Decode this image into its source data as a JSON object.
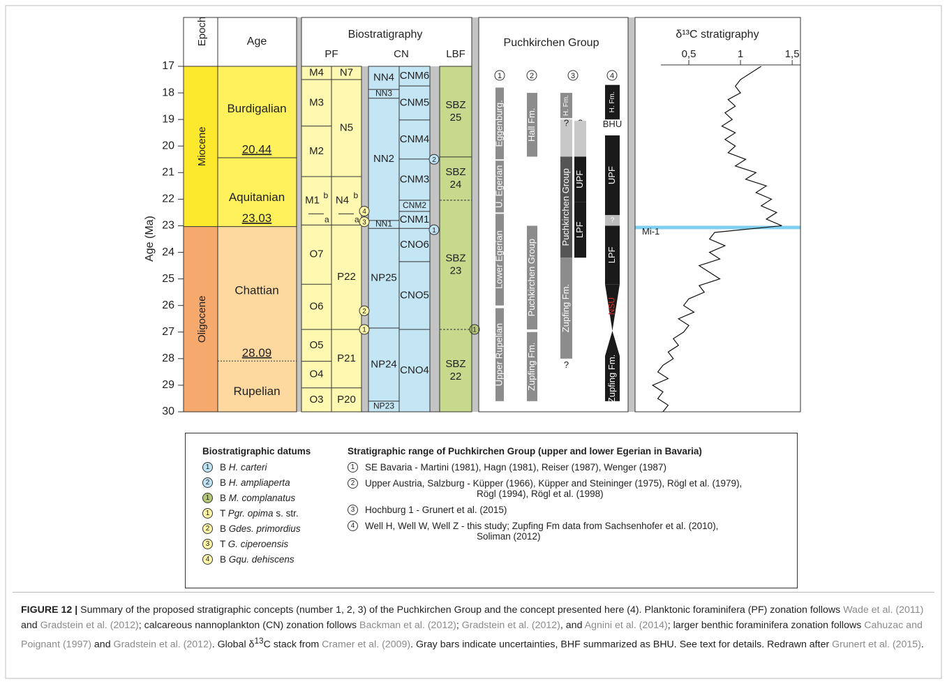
{
  "figure": {
    "epoch_header": "Epoch",
    "age_header": "Age",
    "epochs": [
      {
        "label": "Miocene",
        "from": 17,
        "to": 23.03,
        "color": "#fce92d"
      },
      {
        "label": "Oligocene",
        "from": 23.03,
        "to": 30,
        "color": "#f6a96d"
      }
    ],
    "stages": [
      {
        "label": "Burdigalian",
        "from": 17,
        "to": 20.44,
        "color": "#fef15c"
      },
      {
        "label": "Aquitanian",
        "from": 20.44,
        "to": 23.03,
        "color": "#fef15c"
      },
      {
        "label": "Chattian",
        "from": 23.03,
        "to": 28.09,
        "color": "#fdd9a0"
      },
      {
        "label": "Rupelian",
        "from": 28.09,
        "to": 30,
        "color": "#fdd9a0"
      }
    ],
    "boundaries": [
      {
        "age": 20.44,
        "style": "solid"
      },
      {
        "age": 23.03,
        "style": "solid"
      },
      {
        "age": 28.09,
        "style": "dotted"
      }
    ],
    "biostratigraphy": {
      "title": "Biostratigraphy",
      "columns": [
        {
          "name": "PF",
          "color": "#fff8b0",
          "lanes": [
            [
              {
                "label": "M4",
                "from": 17,
                "to": 17.5
              },
              {
                "label": "M3",
                "from": 17.5,
                "to": 19.25
              },
              {
                "label": "M2",
                "from": 19.25,
                "to": 21.15
              },
              {
                "label": "M1",
                "sup": "b",
                "sub": "a",
                "split": 22.55,
                "from": 21.15,
                "to": 22.97
              },
              {
                "label": "O7",
                "from": 22.97,
                "to": 25.2
              },
              {
                "label": "O6",
                "from": 25.2,
                "to": 26.9
              },
              {
                "label": "O5",
                "from": 26.9,
                "to": 28.1
              },
              {
                "label": "O4",
                "from": 28.1,
                "to": 29.1
              },
              {
                "label": "O3",
                "from": 29.1,
                "to": 30
              }
            ],
            [
              {
                "label": "N7",
                "from": 17,
                "to": 17.5
              },
              {
                "label": "N5",
                "from": 17.5,
                "to": 21.15
              },
              {
                "label": "N4",
                "sup": "b",
                "sub": "a",
                "split": 22.55,
                "from": 21.15,
                "to": 22.97
              },
              {
                "label": "P22",
                "from": 22.97,
                "to": 26.9
              },
              {
                "label": "P21",
                "from": 26.9,
                "to": 29.1
              },
              {
                "label": "P20",
                "from": 29.1,
                "to": 30
              }
            ]
          ]
        },
        {
          "name": "CN",
          "color": "#c4e5f4",
          "lanes": [
            [
              {
                "label": "NN4",
                "from": 17,
                "to": 17.87
              },
              {
                "label": "NN3",
                "from": 17.87,
                "to": 18.2
              },
              {
                "label": "NN2",
                "from": 18.2,
                "to": 22.8
              },
              {
                "label": "NN1",
                "from": 22.8,
                "to": 23.1
              },
              {
                "label": "NP25",
                "from": 23.1,
                "to": 26.85
              },
              {
                "label": "NP24",
                "from": 26.85,
                "to": 29.6
              },
              {
                "label": "NP23",
                "from": 29.6,
                "to": 30
              }
            ],
            [
              {
                "label": "CNM6",
                "from": 17,
                "to": 17.74
              },
              {
                "label": "CNM5",
                "from": 17.74,
                "to": 19.02
              },
              {
                "label": "CNM4",
                "from": 19.02,
                "to": 20.49
              },
              {
                "label": "CNM3",
                "from": 20.49,
                "to": 22.04
              },
              {
                "label": "CNM2",
                "from": 22.04,
                "to": 22.46
              },
              {
                "label": "CNM1",
                "from": 22.46,
                "to": 23.1
              },
              {
                "label": "CNO6",
                "from": 23.1,
                "to": 24.35
              },
              {
                "label": "CNO5",
                "from": 24.35,
                "to": 26.9
              },
              {
                "label": "CNO4",
                "from": 26.9,
                "to": 30
              }
            ]
          ]
        },
        {
          "name": "LBF",
          "color": "#c6d98c",
          "lanes": [
            [
              {
                "label": [
                  "SBZ",
                  "25"
                ],
                "from": 17,
                "to": 20.41,
                "top": "solid"
              },
              {
                "label": [
                  "SBZ",
                  "24"
                ],
                "from": 20.41,
                "to": 22.04,
                "top": "solid"
              },
              {
                "label": [
                  "SBZ",
                  "23"
                ],
                "from": 22.04,
                "to": 26.9,
                "top": "dashed"
              },
              {
                "label": [
                  "SBZ",
                  "22"
                ],
                "from": 26.9,
                "to": 30,
                "top": "dashed"
              }
            ]
          ]
        }
      ]
    },
    "datum_markers": [
      {
        "datum": 6,
        "age": 22.45,
        "column": 0
      },
      {
        "datum": 5,
        "age": 22.85,
        "column": 0
      },
      {
        "datum": 4,
        "age": 26.2,
        "column": 0
      },
      {
        "datum": 3,
        "age": 26.9,
        "column": 0
      },
      {
        "datum": 0,
        "age": 23.15,
        "column": 1
      },
      {
        "datum": 1,
        "age": 20.5,
        "column": 1
      },
      {
        "datum": 2,
        "age": 26.9,
        "column": 2
      }
    ],
    "puchkirchen": {
      "title": "Puchkirchen Group",
      "columns": [
        {
          "n": "1",
          "items": [
            {
              "label": "Eggenburg.",
              "from": 17.8,
              "to": 20.5,
              "color": "#8c8c8c",
              "lane": 0
            },
            {
              "label": "U. Egerian",
              "from": 20.55,
              "to": 22.5,
              "color": "#8c8c8c",
              "lane": 0
            },
            {
              "label": "Lower Egerian",
              "from": 22.55,
              "to": 26.0,
              "color": "#8c8c8c",
              "lane": 0
            },
            {
              "label": "Upper Rupelian",
              "from": 26.1,
              "to": 29.6,
              "color": "#8c8c8c",
              "lane": 0
            }
          ]
        },
        {
          "n": "2",
          "items": [
            {
              "label": "Hall Fm.",
              "from": 18.0,
              "to": 20.4,
              "color": "#8c8c8c",
              "lane": 0
            },
            {
              "label": "Puchkirchen Group",
              "from": 23.0,
              "to": 26.9,
              "color": "#8c8c8c",
              "lane": 0
            },
            {
              "label": "Zupfing Fm.",
              "from": 27.0,
              "to": 29.6,
              "color": "#8c8c8c",
              "lane": 0
            }
          ]
        },
        {
          "n": "3",
          "items": [
            {
              "label": "H. Fm.",
              "from": 18.0,
              "to": 18.95,
              "color": "#8c8c8c",
              "lane": 0
            },
            {
              "label": "",
              "from": 19.0,
              "to": 20.4,
              "color": "#c8c8c8",
              "lane": 0
            },
            {
              "label": "Puchkirchen Group",
              "from": 20.4,
              "to": 24.2,
              "color": "#555555",
              "lane": 0
            },
            {
              "label": "Zupfing Fm.",
              "from": 24.2,
              "to": 28.0,
              "color": "#8c8c8c",
              "lane": 0
            },
            {
              "label": "?",
              "at": 28.25,
              "lane": 0
            },
            {
              "label": "?",
              "at": 19.15,
              "lane": 0
            },
            {
              "label": "?",
              "at": 19.15,
              "lane": 1
            },
            {
              "label": "",
              "from": 19.05,
              "to": 20.4,
              "color": "#c8c8c8",
              "lane": 1
            },
            {
              "label": "UPF",
              "from": 20.4,
              "to": 22.1,
              "color": "#1a1a1a",
              "lane": 1
            },
            {
              "label": "LPF",
              "from": 22.1,
              "to": 24.2,
              "color": "#1a1a1a",
              "lane": 1
            }
          ]
        },
        {
          "n": "4",
          "items": [
            {
              "label": "H. Fm.",
              "from": 17.7,
              "to": 19.0,
              "color": "#1a1a1a",
              "lane": 0
            },
            {
              "label": "BHU",
              "at": 19.2,
              "lane": 0
            },
            {
              "label": "UPF",
              "from": 19.6,
              "to": 22.6,
              "color": "#1a1a1a",
              "lane": 0
            },
            {
              "label": "?",
              "from": 22.6,
              "to": 23.0,
              "color": "#bdbdbd",
              "lane": 0
            },
            {
              "label": "LPF",
              "from": 23.0,
              "to": 25.2,
              "color": "#1a1a1a",
              "lane": 0
            },
            {
              "label": "NSU",
              "from": 25.2,
              "to": 27.9,
              "color": "#1a1a1a",
              "text_color": "#e03030",
              "shape": "wedge",
              "lane": 0
            },
            {
              "label": "Zupfing Fm.",
              "from": 27.9,
              "to": 29.6,
              "color": "#1a1a1a",
              "lane": 0
            }
          ]
        }
      ]
    }
  },
  "chart_data": {
    "type": "line",
    "title": "δ¹³C stratigraphy",
    "ylabel": "Age (Ma)",
    "ylim": [
      17,
      30
    ],
    "yticks": [
      17,
      18,
      19,
      20,
      21,
      22,
      23,
      24,
      25,
      26,
      27,
      28,
      29,
      30
    ],
    "xlim": [
      -0.02,
      1.58
    ],
    "xticks": [
      {
        "value": 0.5,
        "label": "0,5"
      },
      1,
      {
        "value": 1.5,
        "label": "1,5"
      }
    ],
    "color": "#111111",
    "ages": [
      17,
      17.25,
      17.5,
      17.75,
      18,
      18.25,
      18.5,
      18.75,
      19,
      19.25,
      19.5,
      19.75,
      20,
      20.25,
      20.5,
      20.75,
      21,
      21.25,
      21.5,
      21.75,
      22,
      22.25,
      22.5,
      22.75,
      23,
      23.25,
      23.5,
      23.75,
      24,
      24.25,
      24.5,
      24.75,
      25,
      25.25,
      25.5,
      25.75,
      26,
      26.25,
      26.5,
      26.75,
      27,
      27.25,
      27.5,
      27.75,
      28,
      28.25,
      28.5,
      28.75,
      29,
      29.25,
      29.5,
      29.75,
      30
    ],
    "values": [
      1.2,
      1.1,
      1.0,
      0.95,
      1.0,
      0.88,
      0.95,
      0.85,
      0.92,
      0.82,
      0.95,
      0.85,
      0.95,
      0.88,
      1.05,
      0.95,
      1.15,
      1.05,
      1.25,
      1.15,
      1.3,
      1.2,
      1.35,
      1.25,
      1.4,
      0.75,
      0.7,
      0.85,
      0.7,
      0.8,
      0.6,
      0.7,
      0.8,
      0.6,
      0.65,
      0.5,
      0.45,
      0.55,
      0.4,
      0.5,
      0.45,
      0.35,
      0.4,
      0.3,
      0.35,
      0.25,
      0.2,
      0.3,
      0.15,
      0.25,
      0.2,
      0.3,
      0.25
    ],
    "band": {
      "label": "Mi-1",
      "from": 23.0,
      "to": 23.13,
      "color": "#7fcff0"
    }
  },
  "legend": {
    "datums_title": "Biostratigraphic datums",
    "datums": [
      {
        "n": "1",
        "color": "#bfe3f3",
        "prefix": "B",
        "name": "H. carteri",
        "suffix": ""
      },
      {
        "n": "2",
        "color": "#bfe3f3",
        "prefix": "B",
        "name": "H. ampliaperta",
        "suffix": ""
      },
      {
        "n": "1",
        "color": "#b5c77a",
        "prefix": "B",
        "name": "M. complanatus",
        "suffix": ""
      },
      {
        "n": "1",
        "color": "#fff6a8",
        "prefix": "T",
        "name": "Pgr. opima",
        "suffix": "s. str."
      },
      {
        "n": "2",
        "color": "#fff6a8",
        "prefix": "B",
        "name": "Gdes. primordius",
        "suffix": ""
      },
      {
        "n": "3",
        "color": "#fff6a8",
        "prefix": "T",
        "name": "G. ciperoensis",
        "suffix": ""
      },
      {
        "n": "4",
        "color": "#fff6a8",
        "prefix": "B",
        "name": "Gqu. dehiscens",
        "suffix": ""
      }
    ],
    "ranges_title": "Stratigraphic range of Puchkirchen Group (upper and lower Egerian in Bavaria)",
    "ranges": [
      {
        "n": "1",
        "lines": [
          "SE Bavaria - Martini (1981), Hagn (1981), Reiser (1987), Wenger (1987)"
        ]
      },
      {
        "n": "2",
        "lines": [
          "Upper Austria, Salzburg - Küpper (1966), Küpper and Steininger (1975), Rögl et al. (1979),",
          "Rögl (1994), Rögl et al. (1998)"
        ]
      },
      {
        "n": "3",
        "lines": [
          "Hochburg 1 - Grunert et al. (2015)"
        ]
      },
      {
        "n": "4",
        "lines": [
          "Well H, Well W, Well Z - this study; Zupfing Fm data from Sachsenhofer et al. (2010),",
          "Soliman (2012)"
        ]
      }
    ]
  },
  "caption": [
    {
      "text": "FIGURE 12 |",
      "style": "bold"
    },
    {
      "text": " Summary of the proposed stratigraphic concepts (number 1, 2, 3) of the Puchkirchen Group and the concept presented here (4). Planktonic foraminifera (PF) zonation follows ",
      "style": "plain"
    },
    {
      "text": "Wade et al. (2011)",
      "style": "ref"
    },
    {
      "text": " and ",
      "style": "plain"
    },
    {
      "text": "Gradstein et al. (2012)",
      "style": "ref"
    },
    {
      "text": "; calcareous nannoplankton (CN) zonation follows ",
      "style": "plain"
    },
    {
      "text": "Backman et al. (2012)",
      "style": "ref"
    },
    {
      "text": "; ",
      "style": "plain"
    },
    {
      "text": "Gradstein et al. (2012)",
      "style": "ref"
    },
    {
      "text": ", and ",
      "style": "plain"
    },
    {
      "text": "Agnini et al. (2014)",
      "style": "ref"
    },
    {
      "text": "; larger benthic foraminifera zonation follows ",
      "style": "plain"
    },
    {
      "text": "Cahuzac and Poignant (1997)",
      "style": "ref"
    },
    {
      "text": " and ",
      "style": "plain"
    },
    {
      "text": "Gradstein et al. (2012)",
      "style": "ref"
    },
    {
      "text": ". Global δ",
      "style": "plain"
    },
    {
      "text": "13",
      "style": "sup"
    },
    {
      "text": "C stack from ",
      "style": "plain"
    },
    {
      "text": "Cramer et al. (2009)",
      "style": "ref"
    },
    {
      "text": ". Gray bars indicate uncertainties, BHF summarized as BHU. See text for details. Redrawn after ",
      "style": "plain"
    },
    {
      "text": "Grunert et al. (2015)",
      "style": "ref"
    },
    {
      "text": ".",
      "style": "plain"
    }
  ]
}
